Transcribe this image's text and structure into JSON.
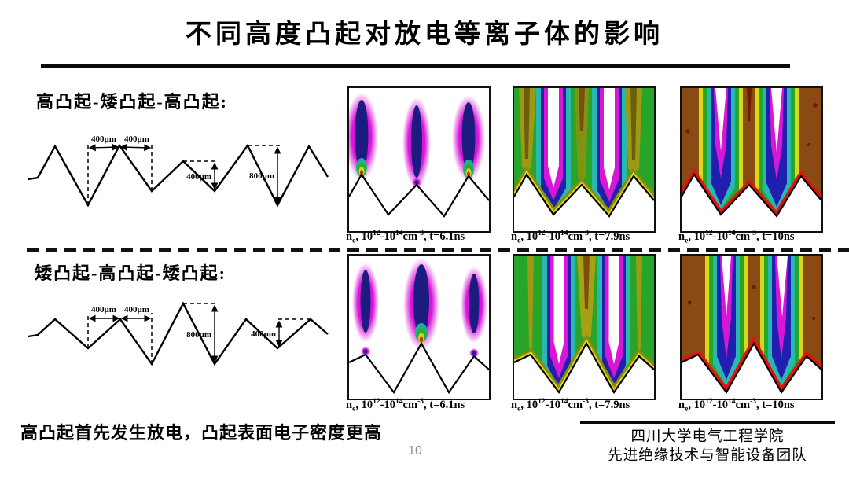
{
  "slide": {
    "title": "不同高度凸起对放电等离子体的影响",
    "conclusion": "高凸起首先发生放电，凸起表面电子密度更高",
    "page_number": "10",
    "footer_line1": "四川大学电气工程学院",
    "footer_line2": "先进绝缘技术与智能设备团队"
  },
  "contour_palette": {
    "magenta": "#d816d8",
    "navy": "#1c1c80",
    "blue": "#2020b0",
    "cyan": "#28b8b0",
    "green": "#28a428",
    "yellow": "#d8d818",
    "olive": "#9a9a14",
    "brown": "#8a4a14",
    "red": "#e01212",
    "dark_red_spots": "#6e1c08",
    "surface_line": "#000000"
  },
  "rows": [
    {
      "label": "高凸起-矮凸起-高凸起:",
      "profile_dims": {
        "gap1": "400μm",
        "gap2": "400μm",
        "low_height": "400μm",
        "high_height": "800μm"
      },
      "captions": [
        [
          {
            "t": "n",
            "s": "n"
          },
          {
            "t": "e",
            "s": "sub"
          },
          {
            "t": ", 10",
            "s": "n"
          },
          {
            "t": "12",
            "s": "sup"
          },
          {
            "t": "-10",
            "s": "n"
          },
          {
            "t": "14",
            "s": "sup"
          },
          {
            "t": "cm",
            "s": "n"
          },
          {
            "t": "-3",
            "s": "sup"
          },
          {
            "t": ", t=6.1ns",
            "s": "n"
          }
        ],
        [
          {
            "t": "n",
            "s": "n"
          },
          {
            "t": "e",
            "s": "sub"
          },
          {
            "t": ", 10",
            "s": "n"
          },
          {
            "t": "12",
            "s": "sup"
          },
          {
            "t": "-10",
            "s": "n"
          },
          {
            "t": "14",
            "s": "sup"
          },
          {
            "t": "cm",
            "s": "n"
          },
          {
            "t": "-3",
            "s": "sup"
          },
          {
            "t": ", t=7.9ns",
            "s": "n"
          }
        ],
        [
          {
            "t": "n",
            "s": "n"
          },
          {
            "t": "e",
            "s": "sub"
          },
          {
            "t": ", 10",
            "s": "n"
          },
          {
            "t": "12",
            "s": "sup"
          },
          {
            "t": "-10",
            "s": "n"
          },
          {
            "t": "14",
            "s": "sup"
          },
          {
            "t": "cm",
            "s": "n"
          },
          {
            "t": "-3",
            "s": "sup"
          },
          {
            "t": ", t=10ns",
            "s": "n"
          }
        ]
      ]
    },
    {
      "label": "矮凸起-高凸起-矮凸起:",
      "profile_dims": {
        "gap1": "400μm",
        "gap2": "400μm",
        "high_height": "800μm",
        "low_height": "400μm"
      },
      "captions": [
        [
          {
            "t": "n",
            "s": "n"
          },
          {
            "t": "e",
            "s": "sub"
          },
          {
            "t": ", 10",
            "s": "n"
          },
          {
            "t": "12",
            "s": "sup"
          },
          {
            "t": "-10",
            "s": "n"
          },
          {
            "t": "14",
            "s": "sup"
          },
          {
            "t": "cm",
            "s": "n"
          },
          {
            "t": "-3",
            "s": "sup"
          },
          {
            "t": ", t=6.1ns",
            "s": "n"
          }
        ],
        [
          {
            "t": "n",
            "s": "n"
          },
          {
            "t": "e",
            "s": "sub"
          },
          {
            "t": ", 10",
            "s": "n"
          },
          {
            "t": "12",
            "s": "sup"
          },
          {
            "t": "-10",
            "s": "n"
          },
          {
            "t": "14",
            "s": "sup"
          },
          {
            "t": "cm",
            "s": "n"
          },
          {
            "t": "-3",
            "s": "sup"
          },
          {
            "t": ", t=7.9ns",
            "s": "n"
          }
        ],
        [
          {
            "t": "n",
            "s": "n"
          },
          {
            "t": "e",
            "s": "sub"
          },
          {
            "t": ", 10",
            "s": "n"
          },
          {
            "t": "12",
            "s": "sup"
          },
          {
            "t": "-10",
            "s": "n"
          },
          {
            "t": "14",
            "s": "sup"
          },
          {
            "t": "cm",
            "s": "n"
          },
          {
            "t": "-3",
            "s": "sup"
          },
          {
            "t": ", t=10ns",
            "s": "n"
          }
        ]
      ]
    }
  ]
}
